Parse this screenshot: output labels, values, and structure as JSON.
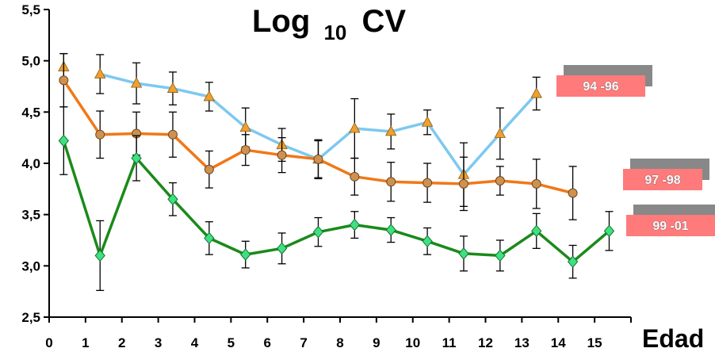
{
  "chart_data": {
    "type": "line",
    "title": {
      "main": "Log",
      "sub": "10",
      "suffix": "CV"
    },
    "xlabel": "Edad",
    "ylabel": "",
    "xlim": [
      0,
      16
    ],
    "ylim": [
      2.5,
      5.5
    ],
    "x_ticks": [
      0,
      1,
      2,
      3,
      4,
      5,
      6,
      7,
      8,
      9,
      10,
      11,
      12,
      13,
      14,
      15
    ],
    "y_ticks": [
      "2,5",
      "3,0",
      "3,5",
      "4,0",
      "4,5",
      "5,0",
      "5,5"
    ],
    "y_tick_values": [
      2.5,
      3.0,
      3.5,
      4.0,
      4.5,
      5.0,
      5.5
    ],
    "series": [
      {
        "name": "94 -96",
        "color": "#7ec8f0",
        "marker": "triangle",
        "marker_color": "#f0a030",
        "x": [
          0.4,
          1.4,
          2.4,
          3.4,
          4.4,
          5.4,
          6.4,
          7.4,
          8.4,
          9.4,
          10.4,
          11.4,
          12.4,
          13.4
        ],
        "y": [
          4.94,
          4.87,
          4.78,
          4.73,
          4.65,
          4.35,
          4.18,
          4.04,
          4.34,
          4.31,
          4.4,
          3.89,
          4.29,
          4.68
        ],
        "err": [
          0.13,
          0.19,
          0.2,
          0.16,
          0.14,
          0.19,
          0.16,
          0.18,
          0.29,
          0.17,
          0.12,
          0.31,
          0.25,
          0.16
        ],
        "gap_after_index": 0
      },
      {
        "name": "97 -98",
        "color": "#f07818",
        "marker": "circle",
        "marker_color": "#d09050",
        "x": [
          0.4,
          1.4,
          2.4,
          3.4,
          4.4,
          5.4,
          6.4,
          7.4,
          8.4,
          9.4,
          10.4,
          11.4,
          12.4,
          13.4,
          14.4
        ],
        "y": [
          4.81,
          4.28,
          4.29,
          4.28,
          3.94,
          4.13,
          4.08,
          4.04,
          3.87,
          3.82,
          3.81,
          3.8,
          3.83,
          3.8,
          3.71
        ],
        "err": [
          0.26,
          0.23,
          0.21,
          0.22,
          0.18,
          0.15,
          0.17,
          0.19,
          0.18,
          0.19,
          0.19,
          0.26,
          0.14,
          0.24,
          0.26
        ]
      },
      {
        "name": "99 -01",
        "color": "#1a8a1a",
        "marker": "diamond",
        "marker_color": "#40e080",
        "x": [
          0.4,
          1.4,
          2.4,
          3.4,
          4.4,
          5.4,
          6.4,
          7.4,
          8.4,
          9.4,
          10.4,
          11.4,
          12.4,
          13.4,
          14.4,
          15.4
        ],
        "y": [
          4.22,
          3.1,
          4.05,
          3.65,
          3.27,
          3.11,
          3.17,
          3.33,
          3.4,
          3.35,
          3.24,
          3.12,
          3.1,
          3.34,
          3.04,
          3.34
        ],
        "err": [
          0.33,
          0.34,
          0.22,
          0.16,
          0.16,
          0.13,
          0.15,
          0.14,
          0.13,
          0.12,
          0.13,
          0.17,
          0.15,
          0.17,
          0.16,
          0.19
        ]
      }
    ],
    "label_boxes": {
      "fill": "#ff7a7a",
      "shadow": "#888888"
    },
    "grid": false
  }
}
